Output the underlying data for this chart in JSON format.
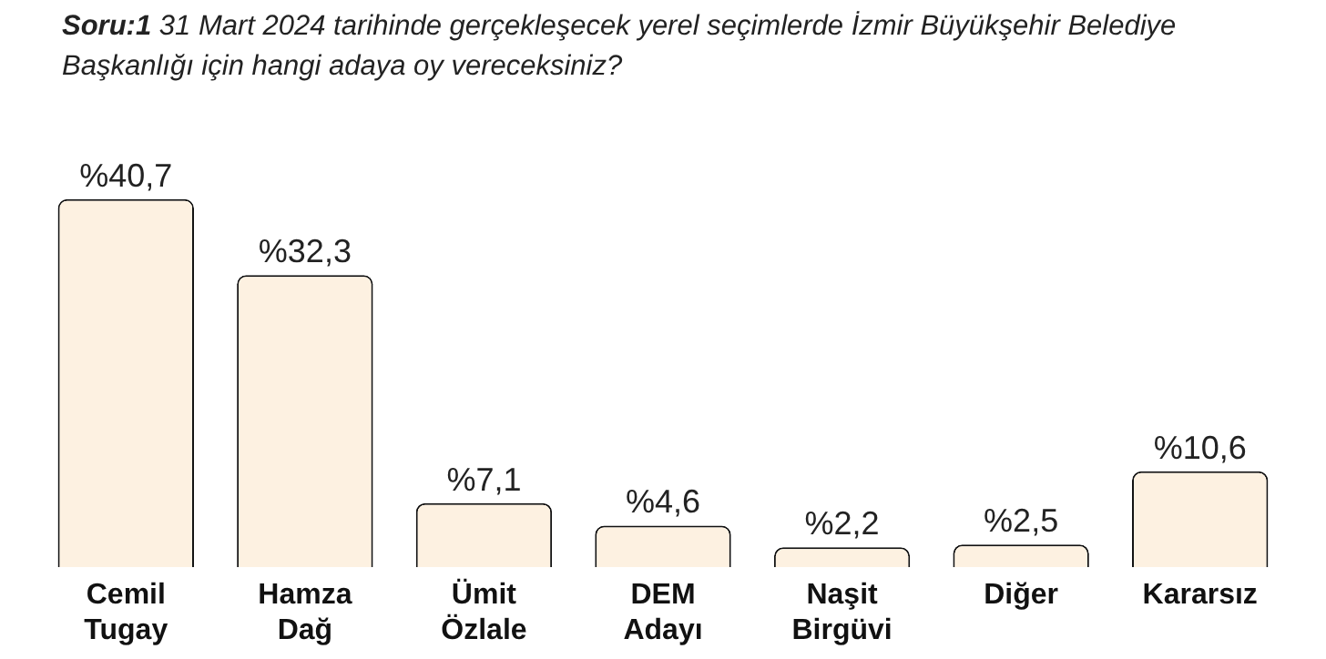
{
  "chart_data": {
    "type": "bar",
    "title": "Soru:1 31 Mart 2024 tarihinde gerçekleşecek yerel seçimlerde İzmir Büyükşehir Belediye Başkanlığı için hangi adaya oy vereceksiniz?",
    "categories": [
      "Cemil Tugay",
      "Hamza Dağ",
      "Ümit Özlale",
      "DEM Adayı",
      "Naşit Birgüvi",
      "Diğer",
      "Kararsız"
    ],
    "values": [
      40.7,
      32.3,
      7.1,
      4.6,
      2.2,
      2.5,
      10.6
    ],
    "value_labels": [
      "%40,7",
      "%32,3",
      "%7,1",
      "%4,6",
      "%2,2",
      "%2,5",
      "%10,6"
    ],
    "color": "#fdf1e1",
    "grid": false,
    "legend": false
  }
}
